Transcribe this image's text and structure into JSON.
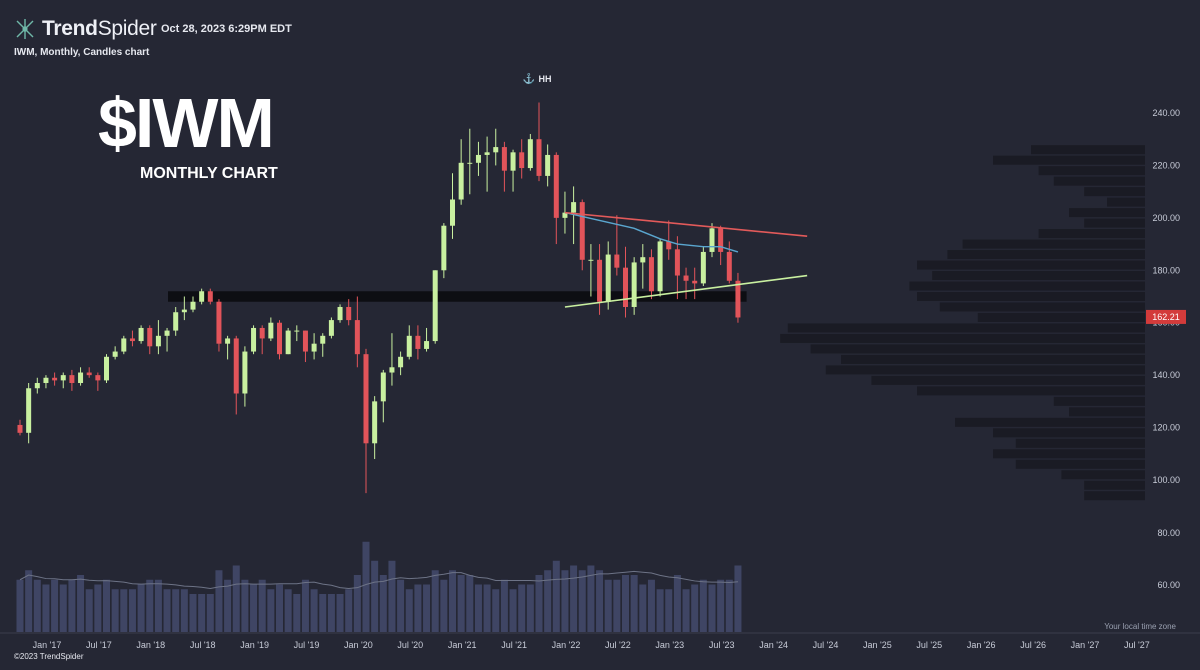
{
  "header": {
    "brand_bold": "Trend",
    "brand_light": "Spider",
    "timestamp": "Oct 28, 2023 6:29PM EDT",
    "subtitle": "IWM, Monthly, Candles chart"
  },
  "overlay": {
    "ticker": "$IWM",
    "caption": "MONTHLY CHART"
  },
  "footer": {
    "timezone_note": "Your local time zone",
    "copyright": "©2023 TrendSpider"
  },
  "colors": {
    "background": "#252734",
    "up": "#c9f0a0",
    "down": "#e2545a",
    "ma": "#5aa6cf",
    "resistance": "#e25a5a",
    "support": "#c9f0a0",
    "volume": "#3f4564",
    "vp": "#1a1b24",
    "zone": "#0d0e13",
    "price_badge": "#d33b3b"
  },
  "chart_data": {
    "type": "candlestick",
    "symbol": "IWM",
    "interval": "Monthly",
    "ylim": [
      70,
      245
    ],
    "y_ticks": [
      240,
      220,
      200,
      180,
      160,
      140,
      120,
      100,
      80,
      60
    ],
    "x_ticks": [
      "Jan '17",
      "Jul '17",
      "Jan '18",
      "Jul '18",
      "Jan '19",
      "Jul '19",
      "Jan '20",
      "Jul '20",
      "Jan '21",
      "Jul '21",
      "Jan '22",
      "Jul '22",
      "Jan '23",
      "Jul '23",
      "Jan '24",
      "Jul '24",
      "Jan '25",
      "Jul '25",
      "Jan '26",
      "Jul '26",
      "Jan '27",
      "Jul '27"
    ],
    "last_price": "162.21",
    "annotation": "HH",
    "candles": [
      {
        "t": "2016-11",
        "o": 121,
        "h": 123,
        "l": 117,
        "c": 118,
        "v": 55
      },
      {
        "t": "2016-12",
        "o": 118,
        "h": 137,
        "l": 114,
        "c": 135,
        "v": 65
      },
      {
        "t": "2017-01",
        "o": 135,
        "h": 139,
        "l": 133,
        "c": 137,
        "v": 55
      },
      {
        "t": "2017-02",
        "o": 137,
        "h": 140,
        "l": 135,
        "c": 139,
        "v": 50
      },
      {
        "t": "2017-03",
        "o": 139,
        "h": 141,
        "l": 136,
        "c": 138,
        "v": 55
      },
      {
        "t": "2017-04",
        "o": 138,
        "h": 141,
        "l": 135,
        "c": 140,
        "v": 50
      },
      {
        "t": "2017-05",
        "o": 140,
        "h": 142,
        "l": 134,
        "c": 137,
        "v": 55
      },
      {
        "t": "2017-06",
        "o": 137,
        "h": 143,
        "l": 136,
        "c": 141,
        "v": 60
      },
      {
        "t": "2017-07",
        "o": 141,
        "h": 143,
        "l": 139,
        "c": 140,
        "v": 45
      },
      {
        "t": "2017-08",
        "o": 140,
        "h": 141,
        "l": 134,
        "c": 138,
        "v": 50
      },
      {
        "t": "2017-09",
        "o": 138,
        "h": 148,
        "l": 137,
        "c": 147,
        "v": 55
      },
      {
        "t": "2017-10",
        "o": 147,
        "h": 151,
        "l": 146,
        "c": 149,
        "v": 45
      },
      {
        "t": "2017-11",
        "o": 149,
        "h": 155,
        "l": 148,
        "c": 154,
        "v": 45
      },
      {
        "t": "2017-12",
        "o": 154,
        "h": 157,
        "l": 151,
        "c": 153,
        "v": 45
      },
      {
        "t": "2018-01",
        "o": 153,
        "h": 159,
        "l": 152,
        "c": 158,
        "v": 50
      },
      {
        "t": "2018-02",
        "o": 158,
        "h": 159,
        "l": 148,
        "c": 151,
        "v": 55
      },
      {
        "t": "2018-03",
        "o": 151,
        "h": 161,
        "l": 148,
        "c": 155,
        "v": 55
      },
      {
        "t": "2018-04",
        "o": 155,
        "h": 158,
        "l": 149,
        "c": 157,
        "v": 45
      },
      {
        "t": "2018-05",
        "o": 157,
        "h": 166,
        "l": 155,
        "c": 164,
        "v": 45
      },
      {
        "t": "2018-06",
        "o": 164,
        "h": 170,
        "l": 161,
        "c": 165,
        "v": 45
      },
      {
        "t": "2018-07",
        "o": 165,
        "h": 170,
        "l": 164,
        "c": 168,
        "v": 40
      },
      {
        "t": "2018-08",
        "o": 168,
        "h": 173,
        "l": 167,
        "c": 172,
        "v": 40
      },
      {
        "t": "2018-09",
        "o": 172,
        "h": 173,
        "l": 167,
        "c": 168,
        "v": 40
      },
      {
        "t": "2018-10",
        "o": 168,
        "h": 169,
        "l": 149,
        "c": 152,
        "v": 65
      },
      {
        "t": "2018-11",
        "o": 152,
        "h": 155,
        "l": 146,
        "c": 154,
        "v": 55
      },
      {
        "t": "2018-12",
        "o": 154,
        "h": 155,
        "l": 125,
        "c": 133,
        "v": 70
      },
      {
        "t": "2019-01",
        "o": 133,
        "h": 151,
        "l": 128,
        "c": 149,
        "v": 55
      },
      {
        "t": "2019-02",
        "o": 149,
        "h": 159,
        "l": 148,
        "c": 158,
        "v": 50
      },
      {
        "t": "2019-03",
        "o": 158,
        "h": 159,
        "l": 148,
        "c": 154,
        "v": 55
      },
      {
        "t": "2019-04",
        "o": 154,
        "h": 162,
        "l": 153,
        "c": 160,
        "v": 45
      },
      {
        "t": "2019-05",
        "o": 160,
        "h": 161,
        "l": 146,
        "c": 148,
        "v": 50
      },
      {
        "t": "2019-06",
        "o": 148,
        "h": 158,
        "l": 148,
        "c": 157,
        "v": 45
      },
      {
        "t": "2019-07",
        "o": 157,
        "h": 159,
        "l": 153,
        "c": 157,
        "v": 40
      },
      {
        "t": "2019-08",
        "o": 157,
        "h": 157,
        "l": 145,
        "c": 149,
        "v": 55
      },
      {
        "t": "2019-09",
        "o": 149,
        "h": 156,
        "l": 146,
        "c": 152,
        "v": 45
      },
      {
        "t": "2019-10",
        "o": 152,
        "h": 156,
        "l": 147,
        "c": 155,
        "v": 40
      },
      {
        "t": "2019-11",
        "o": 155,
        "h": 162,
        "l": 154,
        "c": 161,
        "v": 40
      },
      {
        "t": "2019-12",
        "o": 161,
        "h": 167,
        "l": 160,
        "c": 166,
        "v": 40
      },
      {
        "t": "2020-01",
        "o": 166,
        "h": 169,
        "l": 159,
        "c": 161,
        "v": 45
      },
      {
        "t": "2020-02",
        "o": 161,
        "h": 170,
        "l": 143,
        "c": 148,
        "v": 60
      },
      {
        "t": "2020-03",
        "o": 148,
        "h": 150,
        "l": 95,
        "c": 114,
        "v": 95
      },
      {
        "t": "2020-04",
        "o": 114,
        "h": 132,
        "l": 108,
        "c": 130,
        "v": 75
      },
      {
        "t": "2020-05",
        "o": 130,
        "h": 142,
        "l": 122,
        "c": 141,
        "v": 60
      },
      {
        "t": "2020-06",
        "o": 141,
        "h": 156,
        "l": 136,
        "c": 143,
        "v": 75
      },
      {
        "t": "2020-07",
        "o": 143,
        "h": 149,
        "l": 140,
        "c": 147,
        "v": 55
      },
      {
        "t": "2020-08",
        "o": 147,
        "h": 159,
        "l": 146,
        "c": 155,
        "v": 45
      },
      {
        "t": "2020-09",
        "o": 155,
        "h": 159,
        "l": 146,
        "c": 150,
        "v": 50
      },
      {
        "t": "2020-10",
        "o": 150,
        "h": 158,
        "l": 149,
        "c": 153,
        "v": 50
      },
      {
        "t": "2020-11",
        "o": 153,
        "h": 180,
        "l": 152,
        "c": 180,
        "v": 65
      },
      {
        "t": "2020-12",
        "o": 180,
        "h": 198,
        "l": 177,
        "c": 197,
        "v": 55
      },
      {
        "t": "2021-01",
        "o": 197,
        "h": 217,
        "l": 192,
        "c": 207,
        "v": 65
      },
      {
        "t": "2021-02",
        "o": 207,
        "h": 230,
        "l": 205,
        "c": 221,
        "v": 60
      },
      {
        "t": "2021-03",
        "o": 221,
        "h": 234,
        "l": 209,
        "c": 221,
        "v": 60
      },
      {
        "t": "2021-04",
        "o": 221,
        "h": 229,
        "l": 216,
        "c": 224,
        "v": 50
      },
      {
        "t": "2021-05",
        "o": 224,
        "h": 231,
        "l": 210,
        "c": 225,
        "v": 50
      },
      {
        "t": "2021-06",
        "o": 225,
        "h": 234,
        "l": 220,
        "c": 227,
        "v": 45
      },
      {
        "t": "2021-07",
        "o": 227,
        "h": 229,
        "l": 210,
        "c": 218,
        "v": 55
      },
      {
        "t": "2021-08",
        "o": 218,
        "h": 226,
        "l": 210,
        "c": 225,
        "v": 45
      },
      {
        "t": "2021-09",
        "o": 225,
        "h": 230,
        "l": 215,
        "c": 219,
        "v": 50
      },
      {
        "t": "2021-10",
        "o": 219,
        "h": 232,
        "l": 218,
        "c": 230,
        "v": 50
      },
      {
        "t": "2021-11",
        "o": 230,
        "h": 244,
        "l": 214,
        "c": 216,
        "v": 60
      },
      {
        "t": "2021-12",
        "o": 216,
        "h": 228,
        "l": 212,
        "c": 224,
        "v": 65
      },
      {
        "t": "2022-01",
        "o": 224,
        "h": 225,
        "l": 190,
        "c": 200,
        "v": 75
      },
      {
        "t": "2022-02",
        "o": 200,
        "h": 210,
        "l": 194,
        "c": 202,
        "v": 65
      },
      {
        "t": "2022-03",
        "o": 202,
        "h": 212,
        "l": 190,
        "c": 206,
        "v": 70
      },
      {
        "t": "2022-04",
        "o": 206,
        "h": 207,
        "l": 180,
        "c": 184,
        "v": 65
      },
      {
        "t": "2022-05",
        "o": 184,
        "h": 190,
        "l": 170,
        "c": 184,
        "v": 70
      },
      {
        "t": "2022-06",
        "o": 184,
        "h": 190,
        "l": 163,
        "c": 168,
        "v": 65
      },
      {
        "t": "2022-07",
        "o": 168,
        "h": 191,
        "l": 165,
        "c": 186,
        "v": 55
      },
      {
        "t": "2022-08",
        "o": 186,
        "h": 201,
        "l": 178,
        "c": 181,
        "v": 55
      },
      {
        "t": "2022-09",
        "o": 181,
        "h": 189,
        "l": 162,
        "c": 166,
        "v": 60
      },
      {
        "t": "2022-10",
        "o": 166,
        "h": 185,
        "l": 163,
        "c": 183,
        "v": 60
      },
      {
        "t": "2022-11",
        "o": 183,
        "h": 190,
        "l": 173,
        "c": 185,
        "v": 50
      },
      {
        "t": "2022-12",
        "o": 185,
        "h": 188,
        "l": 169,
        "c": 172,
        "v": 55
      },
      {
        "t": "2023-01",
        "o": 172,
        "h": 192,
        "l": 170,
        "c": 191,
        "v": 45
      },
      {
        "t": "2023-02",
        "o": 191,
        "h": 199,
        "l": 184,
        "c": 188,
        "v": 45
      },
      {
        "t": "2023-03",
        "o": 188,
        "h": 193,
        "l": 169,
        "c": 178,
        "v": 60
      },
      {
        "t": "2023-04",
        "o": 178,
        "h": 181,
        "l": 169,
        "c": 176,
        "v": 45
      },
      {
        "t": "2023-05",
        "o": 176,
        "h": 181,
        "l": 169,
        "c": 175,
        "v": 50
      },
      {
        "t": "2023-06",
        "o": 175,
        "h": 189,
        "l": 174,
        "c": 187,
        "v": 55
      },
      {
        "t": "2023-07",
        "o": 187,
        "h": 198,
        "l": 185,
        "c": 196,
        "v": 50
      },
      {
        "t": "2023-08",
        "o": 196,
        "h": 197,
        "l": 182,
        "c": 187,
        "v": 55
      },
      {
        "t": "2023-09",
        "o": 187,
        "h": 191,
        "l": 175,
        "c": 176,
        "v": 55
      },
      {
        "t": "2023-10",
        "o": 176,
        "h": 179,
        "l": 160,
        "c": 162,
        "v": 70
      }
    ],
    "moving_average": [
      {
        "t": "2022-02",
        "v": 202
      },
      {
        "t": "2022-06",
        "v": 199
      },
      {
        "t": "2022-10",
        "v": 196
      },
      {
        "t": "2023-01",
        "v": 192
      },
      {
        "t": "2023-03",
        "v": 190
      },
      {
        "t": "2023-06",
        "v": 189
      },
      {
        "t": "2023-08",
        "v": 189
      },
      {
        "t": "2023-10",
        "v": 187
      }
    ],
    "trendlines": [
      {
        "name": "resistance",
        "from": {
          "t": "2022-02",
          "v": 202
        },
        "to": {
          "t": "2024-06",
          "v": 193
        }
      },
      {
        "name": "support",
        "from": {
          "t": "2022-02",
          "v": 166
        },
        "to": {
          "t": "2024-06",
          "v": 178
        }
      }
    ],
    "zone": {
      "from": "2018-07",
      "to": "2023-11",
      "low": 168,
      "high": 172
    },
    "volume_profile": [
      {
        "p": 226,
        "w": 0.15
      },
      {
        "p": 222,
        "w": 0.2
      },
      {
        "p": 218,
        "w": 0.14
      },
      {
        "p": 214,
        "w": 0.12
      },
      {
        "p": 210,
        "w": 0.08
      },
      {
        "p": 206,
        "w": 0.05
      },
      {
        "p": 202,
        "w": 0.1
      },
      {
        "p": 198,
        "w": 0.08
      },
      {
        "p": 194,
        "w": 0.14
      },
      {
        "p": 190,
        "w": 0.24
      },
      {
        "p": 186,
        "w": 0.26
      },
      {
        "p": 182,
        "w": 0.3
      },
      {
        "p": 178,
        "w": 0.28
      },
      {
        "p": 174,
        "w": 0.31
      },
      {
        "p": 170,
        "w": 0.3
      },
      {
        "p": 166,
        "w": 0.27
      },
      {
        "p": 162,
        "w": 0.22
      },
      {
        "p": 158,
        "w": 0.47
      },
      {
        "p": 154,
        "w": 0.48
      },
      {
        "p": 150,
        "w": 0.44
      },
      {
        "p": 146,
        "w": 0.4
      },
      {
        "p": 142,
        "w": 0.42
      },
      {
        "p": 138,
        "w": 0.36
      },
      {
        "p": 134,
        "w": 0.3
      },
      {
        "p": 130,
        "w": 0.12
      },
      {
        "p": 126,
        "w": 0.1
      },
      {
        "p": 122,
        "w": 0.25
      },
      {
        "p": 118,
        "w": 0.2
      },
      {
        "p": 114,
        "w": 0.17
      },
      {
        "p": 110,
        "w": 0.2
      },
      {
        "p": 106,
        "w": 0.17
      },
      {
        "p": 102,
        "w": 0.11
      },
      {
        "p": 98,
        "w": 0.08
      },
      {
        "p": 94,
        "w": 0.08
      }
    ]
  }
}
